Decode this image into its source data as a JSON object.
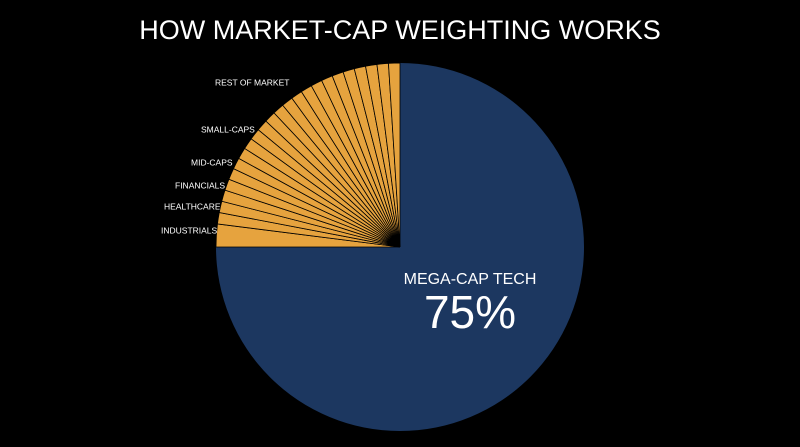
{
  "chart_data": {
    "type": "pie",
    "title": "HOW MARKET-CAP WEIGHTING WORKS",
    "categories": [
      "MEGA-CAP TECH",
      "INDUSTRIALS",
      "HEALTHCARE",
      "FINANCIALS",
      null,
      "MID-CAPS",
      null,
      null,
      null,
      null,
      "SMALL-CAPS",
      null,
      null,
      null,
      null,
      null,
      null,
      null,
      null,
      null,
      null,
      null,
      null,
      null,
      "REST OF MARKET"
    ],
    "values": [
      75,
      2,
      1,
      1,
      1,
      1,
      1,
      1,
      1,
      1,
      1,
      1,
      1,
      1,
      1,
      1,
      1,
      1,
      1,
      1,
      1,
      1,
      1,
      1,
      1
    ],
    "value_labels": [
      "75%",
      null,
      null,
      null,
      null,
      null,
      null,
      null,
      null,
      null,
      null,
      null,
      null,
      null,
      null,
      null,
      null,
      null,
      null,
      null,
      null,
      null,
      null,
      null,
      null
    ],
    "colors": [
      "#1c3760",
      "#e6a33e"
    ]
  }
}
